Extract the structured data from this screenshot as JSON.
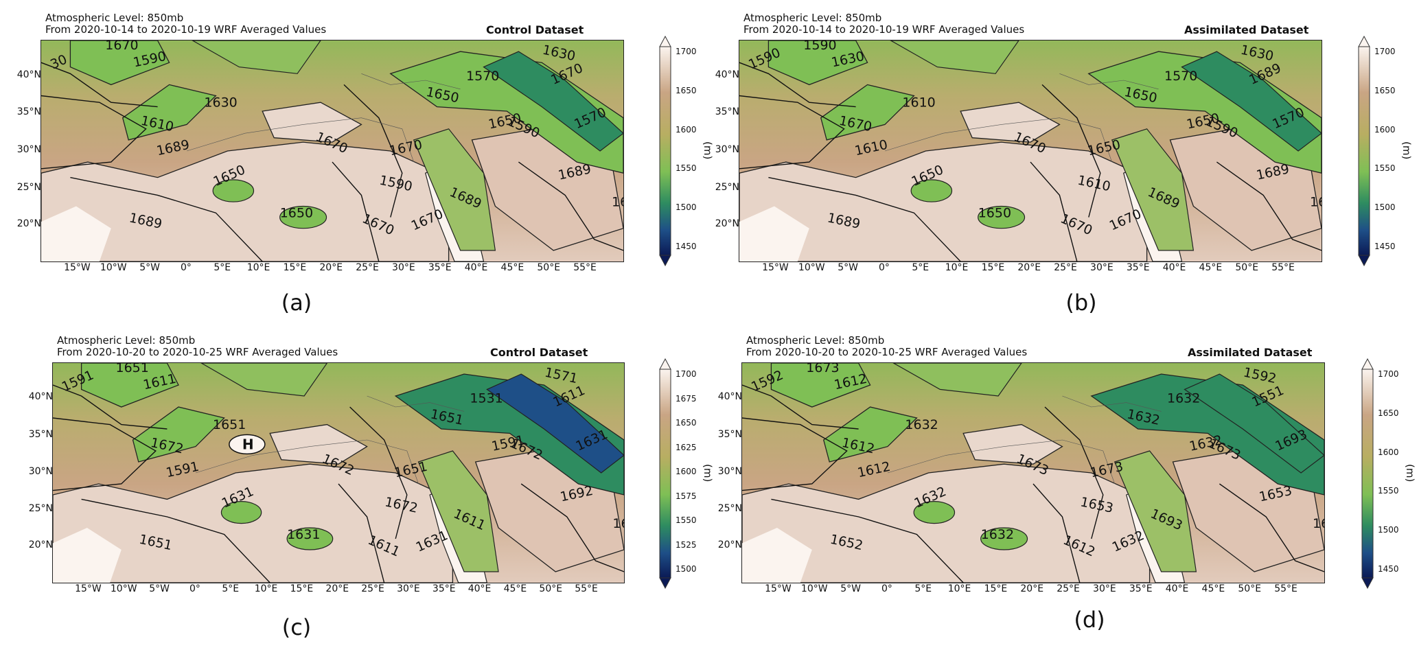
{
  "panels": [
    {
      "id": "a",
      "header_line1": "Atmospheric Level: 850mb",
      "header_line2": "From 2020-10-14 to 2020-10-19 WRF Averaged Values",
      "dataset_title": "Control Dataset",
      "panel_label": "(a)",
      "lat_labels": [
        "40°N",
        "35°N",
        "30°N",
        "25°N",
        "20°N"
      ],
      "lon_labels": [
        "15°W",
        "10°W",
        "5°W",
        "0°",
        "5°E",
        "10°E",
        "15°E",
        "20°E",
        "25°E",
        "30°E",
        "35°E",
        "40°E",
        "45°E",
        "50°E",
        "55°E"
      ],
      "colorbar_ticks": [
        "1700",
        "1650",
        "1600",
        "1550",
        "1500",
        "1450"
      ],
      "colorbar_unit": "(m)",
      "contour_labels": [
        "30",
        "1590",
        "1630",
        "1610",
        "1670",
        "1650",
        "1670",
        "1650",
        "1689",
        "1670",
        "1670",
        "1650",
        "1570",
        "1630",
        "1590",
        "1570",
        "1689",
        "1670",
        "1650",
        "1689",
        "1670",
        "1689",
        "1670",
        "1590"
      ],
      "high_marker": ""
    },
    {
      "id": "b",
      "header_line1": "Atmospheric Level: 850mb",
      "header_line2": "From 2020-10-14 to 2020-10-19 WRF Averaged Values",
      "dataset_title": "Assimilated Dataset",
      "panel_label": "(b)",
      "lat_labels": [
        "40°N",
        "35°N",
        "30°N",
        "25°N",
        "20°N"
      ],
      "lon_labels": [
        "15°W",
        "10°W",
        "5°W",
        "0°",
        "5°E",
        "10°E",
        "15°E",
        "20°E",
        "25°E",
        "30°E",
        "35°E",
        "40°E",
        "45°E",
        "50°E",
        "55°E"
      ],
      "colorbar_ticks": [
        "1700",
        "1650",
        "1600",
        "1550",
        "1500",
        "1450"
      ],
      "colorbar_unit": "(m)",
      "contour_labels": [
        "1590",
        "1630",
        "1610",
        "1670",
        "1670",
        "1650",
        "1650",
        "1650",
        "1689",
        "1670",
        "1689",
        "1650",
        "1570",
        "1630",
        "1590",
        "1570",
        "1689",
        "1670",
        "1650",
        "1689",
        "1670",
        "1610",
        "1590",
        "1610"
      ],
      "high_marker": ""
    },
    {
      "id": "c",
      "header_line1": "Atmospheric Level: 850mb",
      "header_line2": "From 2020-10-20 to 2020-10-25 WRF Averaged Values",
      "dataset_title": "Control Dataset",
      "panel_label": "(c)",
      "lat_labels": [
        "40°N",
        "35°N",
        "30°N",
        "25°N",
        "20°N"
      ],
      "lon_labels": [
        "15°W",
        "10°W",
        "5°W",
        "0°",
        "5°E",
        "10°E",
        "15°E",
        "20°E",
        "25°E",
        "30°E",
        "35°E",
        "40°E",
        "45°E",
        "50°E",
        "55°E"
      ],
      "colorbar_ticks": [
        "1700",
        "1675",
        "1650",
        "1625",
        "1600",
        "1575",
        "1550",
        "1525",
        "1500"
      ],
      "colorbar_unit": "(m)",
      "contour_labels": [
        "1591",
        "1611",
        "1651",
        "1672",
        "1672",
        "1631",
        "1651",
        "1631",
        "1651",
        "1611",
        "1611",
        "1591",
        "1531",
        "1571",
        "1672",
        "1631",
        "1692",
        "1692",
        "1651",
        "1611",
        "1631",
        "1591",
        "1651",
        "1672"
      ],
      "high_marker": "H"
    },
    {
      "id": "d",
      "header_line1": "Atmospheric Level: 850mb",
      "header_line2": "From 2020-10-20 to 2020-10-25 WRF Averaged Values",
      "dataset_title": "Assimilated Dataset",
      "panel_label": "(d)",
      "lat_labels": [
        "40°N",
        "35°N",
        "30°N",
        "25°N",
        "20°N"
      ],
      "lon_labels": [
        "15°W",
        "10°W",
        "5°W",
        "0°",
        "5°E",
        "10°E",
        "15°E",
        "20°E",
        "25°E",
        "30°E",
        "35°E",
        "40°E",
        "45°E",
        "50°E",
        "55°E"
      ],
      "colorbar_ticks": [
        "1700",
        "1650",
        "1600",
        "1550",
        "1500",
        "1450"
      ],
      "colorbar_unit": "(m)",
      "contour_labels": [
        "1592",
        "1612",
        "1632",
        "1612",
        "1673",
        "1632",
        "1673",
        "1632",
        "1652",
        "1612",
        "1551",
        "1632",
        "1632",
        "1592",
        "1673",
        "1693",
        "1653",
        "1673",
        "1632",
        "1693",
        "1632",
        "1612",
        "1673",
        "1653"
      ],
      "high_marker": ""
    }
  ],
  "colors": {
    "high": "#fbf4ef",
    "tan": "#c9a584",
    "olive": "#b8ae62",
    "green": "#7fbf55",
    "teal": "#2e8c60",
    "blue": "#1e4f87",
    "navy": "#0b1a55"
  }
}
